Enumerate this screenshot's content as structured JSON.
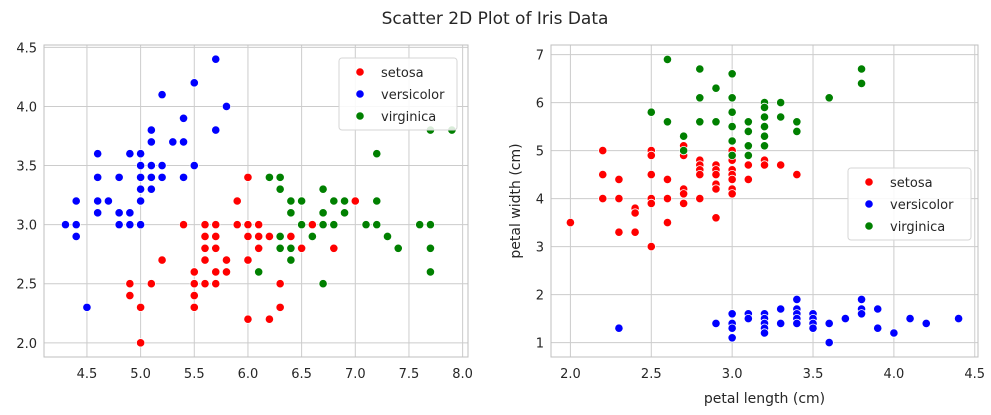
{
  "figure": {
    "suptitle": "Scatter 2D Plot of Iris Data"
  },
  "chart_data": [
    {
      "type": "scatter",
      "title": "",
      "xlabel": "",
      "ylabel": "",
      "xlim": [
        4.1,
        8.05
      ],
      "ylim": [
        1.88,
        4.52
      ],
      "xticks": [
        4.5,
        5.0,
        5.5,
        6.0,
        6.5,
        7.0,
        7.5,
        8.0
      ],
      "xtick_labels": [
        "4.5",
        "5.0",
        "5.5",
        "6.0",
        "6.5",
        "7.0",
        "7.5",
        "8.0"
      ],
      "yticks": [
        2.0,
        2.5,
        3.0,
        3.5,
        4.0,
        4.5
      ],
      "ytick_labels": [
        "2.0",
        "2.5",
        "3.0",
        "3.5",
        "4.0",
        "4.5"
      ],
      "grid": true,
      "legend_position": "top-right",
      "series": [
        {
          "name": "setosa",
          "color": "#ff0000",
          "points": [
            [
              4.9,
              2.5
            ],
            [
              4.9,
              2.4
            ],
            [
              5.0,
              2.3
            ],
            [
              5.0,
              2.0
            ],
            [
              5.1,
              2.5
            ],
            [
              5.2,
              2.7
            ],
            [
              5.4,
              3.0
            ],
            [
              5.5,
              2.6
            ],
            [
              5.5,
              2.5
            ],
            [
              5.5,
              2.4
            ],
            [
              5.5,
              2.3
            ],
            [
              5.6,
              3.0
            ],
            [
              5.6,
              2.9
            ],
            [
              5.6,
              2.8
            ],
            [
              5.6,
              2.7
            ],
            [
              5.6,
              2.5
            ],
            [
              5.7,
              3.0
            ],
            [
              5.7,
              2.9
            ],
            [
              5.7,
              2.8
            ],
            [
              5.7,
              2.6
            ],
            [
              5.7,
              2.5
            ],
            [
              5.8,
              2.7
            ],
            [
              5.8,
              2.6
            ],
            [
              5.9,
              3.2
            ],
            [
              5.9,
              3.0
            ],
            [
              6.0,
              3.4
            ],
            [
              6.0,
              3.0
            ],
            [
              6.0,
              2.9
            ],
            [
              6.0,
              2.7
            ],
            [
              6.0,
              2.2
            ],
            [
              6.1,
              3.0
            ],
            [
              6.1,
              2.9
            ],
            [
              6.1,
              2.8
            ],
            [
              6.2,
              2.9
            ],
            [
              6.2,
              2.2
            ],
            [
              6.3,
              3.3
            ],
            [
              6.3,
              2.5
            ],
            [
              6.3,
              2.3
            ],
            [
              6.4,
              2.9
            ],
            [
              6.5,
              2.8
            ],
            [
              6.6,
              3.0
            ],
            [
              6.6,
              2.9
            ],
            [
              6.7,
              3.1
            ],
            [
              6.7,
              3.0
            ],
            [
              6.8,
              2.8
            ],
            [
              6.9,
              3.1
            ],
            [
              7.0,
              3.2
            ]
          ]
        },
        {
          "name": "versicolor",
          "color": "#0000ff",
          "points": [
            [
              4.3,
              3.0
            ],
            [
              4.4,
              3.2
            ],
            [
              4.4,
              3.0
            ],
            [
              4.4,
              2.9
            ],
            [
              4.5,
              2.3
            ],
            [
              4.6,
              3.6
            ],
            [
              4.6,
              3.4
            ],
            [
              4.6,
              3.2
            ],
            [
              4.6,
              3.1
            ],
            [
              4.7,
              3.2
            ],
            [
              4.8,
              3.4
            ],
            [
              4.8,
              3.1
            ],
            [
              4.8,
              3.0
            ],
            [
              4.9,
              3.6
            ],
            [
              4.9,
              3.1
            ],
            [
              4.9,
              3.0
            ],
            [
              5.0,
              3.6
            ],
            [
              5.0,
              3.5
            ],
            [
              5.0,
              3.4
            ],
            [
              5.0,
              3.3
            ],
            [
              5.0,
              3.2
            ],
            [
              5.0,
              3.0
            ],
            [
              5.1,
              3.8
            ],
            [
              5.1,
              3.7
            ],
            [
              5.1,
              3.5
            ],
            [
              5.1,
              3.4
            ],
            [
              5.1,
              3.3
            ],
            [
              5.2,
              4.1
            ],
            [
              5.2,
              3.5
            ],
            [
              5.2,
              3.4
            ],
            [
              5.3,
              3.7
            ],
            [
              5.4,
              3.9
            ],
            [
              5.4,
              3.7
            ],
            [
              5.4,
              3.4
            ],
            [
              5.5,
              4.2
            ],
            [
              5.5,
              3.5
            ],
            [
              5.7,
              4.4
            ],
            [
              5.7,
              3.8
            ],
            [
              5.8,
              4.0
            ]
          ]
        },
        {
          "name": "virginica",
          "color": "#008000",
          "points": [
            [
              6.1,
              2.6
            ],
            [
              6.2,
              3.4
            ],
            [
              6.3,
              3.4
            ],
            [
              6.3,
              3.3
            ],
            [
              6.3,
              2.9
            ],
            [
              6.3,
              2.8
            ],
            [
              6.4,
              3.2
            ],
            [
              6.4,
              3.1
            ],
            [
              6.4,
              2.8
            ],
            [
              6.4,
              2.7
            ],
            [
              6.5,
              3.2
            ],
            [
              6.5,
              3.0
            ],
            [
              6.6,
              2.9
            ],
            [
              6.7,
              3.3
            ],
            [
              6.7,
              3.1
            ],
            [
              6.7,
              3.0
            ],
            [
              6.7,
              2.5
            ],
            [
              6.8,
              3.2
            ],
            [
              6.8,
              3.0
            ],
            [
              6.9,
              3.2
            ],
            [
              6.9,
              3.1
            ],
            [
              7.1,
              3.0
            ],
            [
              7.2,
              3.6
            ],
            [
              7.2,
              3.2
            ],
            [
              7.2,
              3.0
            ],
            [
              7.3,
              2.9
            ],
            [
              7.4,
              2.8
            ],
            [
              7.6,
              3.0
            ],
            [
              7.7,
              3.8
            ],
            [
              7.7,
              3.0
            ],
            [
              7.7,
              2.8
            ],
            [
              7.7,
              2.6
            ],
            [
              7.9,
              3.8
            ]
          ]
        }
      ]
    },
    {
      "type": "scatter",
      "title": "",
      "xlabel": "petal length (cm)",
      "ylabel": "petal width (cm)",
      "xlim": [
        1.88,
        4.52
      ],
      "ylim": [
        0.7,
        7.2
      ],
      "xticks": [
        2.0,
        2.5,
        3.0,
        3.5,
        4.0,
        4.5
      ],
      "xtick_labels": [
        "2.0",
        "2.5",
        "3.0",
        "3.5",
        "4.0",
        "4.5"
      ],
      "yticks": [
        1,
        2,
        3,
        4,
        5,
        6,
        7
      ],
      "ytick_labels": [
        "1",
        "2",
        "3",
        "4",
        "5",
        "6",
        "7"
      ],
      "grid": true,
      "legend_position": "center-right",
      "series": [
        {
          "name": "setosa",
          "color": "#ff0000",
          "points": [
            [
              2.0,
              3.5
            ],
            [
              2.2,
              5.0
            ],
            [
              2.2,
              4.5
            ],
            [
              2.2,
              4.0
            ],
            [
              2.3,
              4.4
            ],
            [
              2.3,
              4.0
            ],
            [
              2.3,
              3.3
            ],
            [
              2.4,
              3.8
            ],
            [
              2.4,
              3.7
            ],
            [
              2.4,
              3.3
            ],
            [
              2.5,
              5.0
            ],
            [
              2.5,
              4.9
            ],
            [
              2.5,
              4.5
            ],
            [
              2.5,
              4.0
            ],
            [
              2.5,
              3.9
            ],
            [
              2.5,
              3.0
            ],
            [
              2.6,
              4.4
            ],
            [
              2.6,
              4.0
            ],
            [
              2.6,
              3.5
            ],
            [
              2.7,
              5.1
            ],
            [
              2.7,
              4.9
            ],
            [
              2.7,
              4.2
            ],
            [
              2.7,
              4.1
            ],
            [
              2.7,
              3.9
            ],
            [
              2.8,
              4.8
            ],
            [
              2.8,
              4.7
            ],
            [
              2.8,
              4.6
            ],
            [
              2.8,
              4.5
            ],
            [
              2.8,
              4.0
            ],
            [
              2.9,
              4.7
            ],
            [
              2.9,
              4.6
            ],
            [
              2.9,
              4.5
            ],
            [
              2.9,
              4.3
            ],
            [
              2.9,
              4.2
            ],
            [
              2.9,
              3.6
            ],
            [
              3.0,
              5.0
            ],
            [
              3.0,
              4.8
            ],
            [
              3.0,
              4.6
            ],
            [
              3.0,
              4.5
            ],
            [
              3.0,
              4.4
            ],
            [
              3.0,
              4.2
            ],
            [
              3.0,
              4.1
            ],
            [
              3.1,
              4.7
            ],
            [
              3.1,
              4.4
            ],
            [
              3.2,
              4.8
            ],
            [
              3.2,
              4.7
            ],
            [
              3.3,
              4.7
            ],
            [
              3.4,
              4.5
            ]
          ]
        },
        {
          "name": "versicolor",
          "color": "#0000ff",
          "points": [
            [
              2.3,
              1.3
            ],
            [
              2.9,
              1.4
            ],
            [
              3.0,
              1.6
            ],
            [
              3.0,
              1.4
            ],
            [
              3.0,
              1.3
            ],
            [
              3.0,
              1.1
            ],
            [
              3.1,
              1.6
            ],
            [
              3.1,
              1.5
            ],
            [
              3.2,
              1.6
            ],
            [
              3.2,
              1.5
            ],
            [
              3.2,
              1.4
            ],
            [
              3.2,
              1.3
            ],
            [
              3.2,
              1.2
            ],
            [
              3.3,
              1.7
            ],
            [
              3.3,
              1.4
            ],
            [
              3.4,
              1.9
            ],
            [
              3.4,
              1.7
            ],
            [
              3.4,
              1.6
            ],
            [
              3.4,
              1.5
            ],
            [
              3.4,
              1.4
            ],
            [
              3.5,
              1.6
            ],
            [
              3.5,
              1.5
            ],
            [
              3.5,
              1.4
            ],
            [
              3.5,
              1.3
            ],
            [
              3.6,
              1.4
            ],
            [
              3.6,
              1.0
            ],
            [
              3.7,
              1.5
            ],
            [
              3.8,
              1.9
            ],
            [
              3.8,
              1.7
            ],
            [
              3.8,
              1.6
            ],
            [
              3.9,
              1.7
            ],
            [
              3.9,
              1.3
            ],
            [
              4.0,
              1.2
            ],
            [
              4.1,
              1.5
            ],
            [
              4.2,
              1.4
            ],
            [
              4.4,
              1.5
            ]
          ]
        },
        {
          "name": "virginica",
          "color": "#008000",
          "points": [
            [
              2.5,
              5.8
            ],
            [
              2.6,
              6.9
            ],
            [
              2.6,
              5.6
            ],
            [
              2.7,
              5.3
            ],
            [
              2.7,
              5.0
            ],
            [
              2.8,
              6.7
            ],
            [
              2.8,
              6.1
            ],
            [
              2.8,
              5.6
            ],
            [
              2.9,
              6.3
            ],
            [
              2.9,
              5.6
            ],
            [
              3.0,
              6.6
            ],
            [
              3.0,
              6.1
            ],
            [
              3.0,
              5.8
            ],
            [
              3.0,
              5.5
            ],
            [
              3.0,
              5.2
            ],
            [
              3.0,
              4.9
            ],
            [
              3.1,
              5.6
            ],
            [
              3.1,
              5.4
            ],
            [
              3.1,
              5.1
            ],
            [
              3.1,
              4.9
            ],
            [
              3.2,
              6.0
            ],
            [
              3.2,
              5.9
            ],
            [
              3.2,
              5.7
            ],
            [
              3.2,
              5.5
            ],
            [
              3.2,
              5.3
            ],
            [
              3.2,
              5.1
            ],
            [
              3.3,
              6.0
            ],
            [
              3.3,
              5.7
            ],
            [
              3.4,
              5.6
            ],
            [
              3.4,
              5.4
            ],
            [
              3.6,
              6.1
            ],
            [
              3.8,
              6.7
            ],
            [
              3.8,
              6.4
            ]
          ]
        }
      ]
    }
  ]
}
